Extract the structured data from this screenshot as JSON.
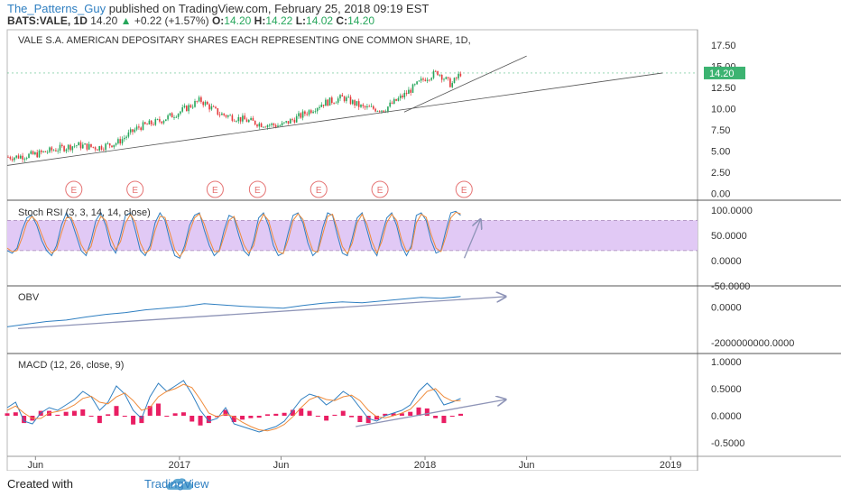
{
  "header": {
    "user": "The_Patterns_Guy",
    "published": "published on TradingView.com, February 25, 2018 09:19 EST",
    "symbol": "BATS:VALE, 1D",
    "last": "14.20",
    "change": "+0.22 (+1.57%)",
    "o_label": "O:",
    "o_val": "14.20",
    "h_label": "H:",
    "h_val": "14.22",
    "l_label": "L:",
    "l_val": "14.02",
    "c_label": "C:",
    "c_val": "14.20"
  },
  "footer": {
    "created_with": "Created with",
    "brand": "TradingView"
  },
  "colors": {
    "up": "#26a65b",
    "down": "#e5393b",
    "stoch_k": "#2f7fc1",
    "stoch_d": "#ef8b3b",
    "band": "#e1c9f5",
    "macd_line": "#2f7fc1",
    "signal_line": "#ef8b3b",
    "histogram": "#e91e63",
    "trendline": "#8e94b7",
    "earnings": "#e57373",
    "price_tag": "#3cb371"
  },
  "chart_data": [
    {
      "type": "candlestick",
      "title": "VALE S.A. AMERICAN DEPOSITARY SHARES EACH REPRESENTING ONE COMMON SHARE, 1D,",
      "x_ticks": [
        "Jun",
        "2017",
        "Jun",
        "2018",
        "Jun",
        "2019"
      ],
      "y_ticks": [
        "17.50",
        "15.00",
        "12.50",
        "10.00",
        "7.50",
        "5.00",
        "2.50",
        "0.00"
      ],
      "ylim": [
        -0.8,
        19.3
      ],
      "last_price_tag": "14.20",
      "earnings_markers": [
        "E",
        "E",
        "E",
        "E",
        "E",
        "E",
        "E"
      ],
      "price_path": [
        [
          "2016-05-01",
          4.3
        ],
        [
          "2016-06-01",
          4.6
        ],
        [
          "2016-07-01",
          5.2
        ],
        [
          "2016-08-01",
          5.7
        ],
        [
          "2016-09-01",
          5.4
        ],
        [
          "2016-10-01",
          6.0
        ],
        [
          "2016-11-01",
          7.8
        ],
        [
          "2016-12-01",
          8.5
        ],
        [
          "2017-01-01",
          9.6
        ],
        [
          "2017-02-01",
          11.0
        ],
        [
          "2017-03-01",
          9.4
        ],
        [
          "2017-04-01",
          8.8
        ],
        [
          "2017-05-01",
          8.2
        ],
        [
          "2017-06-01",
          8.0
        ],
        [
          "2017-07-01",
          9.2
        ],
        [
          "2017-08-01",
          10.6
        ],
        [
          "2017-09-01",
          11.3
        ],
        [
          "2017-10-01",
          10.1
        ],
        [
          "2017-11-01",
          9.9
        ],
        [
          "2017-12-01",
          11.6
        ],
        [
          "2018-01-01",
          13.6
        ],
        [
          "2018-01-20",
          14.3
        ],
        [
          "2018-02-09",
          12.8
        ],
        [
          "2018-02-23",
          14.2
        ]
      ],
      "trendlines": [
        {
          "from": [
            "2016-04-20",
            3.3
          ],
          "to": [
            "2018-12-20",
            14.2
          ]
        },
        {
          "from": [
            "2017-12-01",
            9.6
          ],
          "to": [
            "2018-06-01",
            16.2
          ]
        }
      ]
    },
    {
      "type": "line",
      "title": "Stoch RSI (3, 3, 14, 14, close)",
      "y_ticks": [
        "100.0000",
        "50.0000",
        "0.0000",
        "-50.0000"
      ],
      "band": [
        20,
        80
      ],
      "ylim": [
        -50,
        120
      ],
      "series": [
        {
          "values": [
            20,
            15,
            25,
            60,
            85,
            90,
            70,
            40,
            20,
            10,
            30,
            70,
            95,
            80,
            50,
            20,
            10,
            40,
            80,
            95,
            70,
            30,
            15,
            50,
            90,
            95,
            60,
            20,
            10,
            30,
            75,
            95,
            80,
            40,
            10,
            5,
            30,
            70,
            90,
            95,
            60,
            30,
            10,
            20,
            60,
            90,
            85,
            50,
            20,
            10,
            40,
            85,
            95,
            70,
            30,
            10,
            15,
            55,
            90,
            95,
            75,
            35,
            10,
            20,
            65,
            95,
            90,
            50,
            15,
            10,
            45,
            85,
            95,
            60,
            25,
            10,
            50,
            85,
            95,
            70,
            30,
            10,
            30,
            90,
            95,
            80,
            40,
            15,
            20,
            60,
            95,
            98,
            90
          ]
        },
        {
          "values": [
            25,
            18,
            20,
            45,
            75,
            88,
            78,
            52,
            28,
            15,
            22,
            55,
            85,
            86,
            62,
            32,
            15,
            28,
            65,
            88,
            80,
            45,
            22,
            38,
            75,
            92,
            75,
            35,
            15,
            22,
            60,
            88,
            86,
            55,
            22,
            8,
            22,
            58,
            85,
            93,
            72,
            42,
            18,
            18,
            48,
            80,
            88,
            62,
            32,
            15,
            30,
            72,
            92,
            80,
            45,
            18,
            14,
            42,
            80,
            93,
            82,
            48,
            20,
            17,
            52,
            88,
            92,
            62,
            28,
            14,
            35,
            75,
            92,
            72,
            38,
            15,
            38,
            75,
            92,
            80,
            42,
            18,
            24,
            75,
            92,
            86,
            52,
            25,
            18,
            48,
            85,
            96,
            93
          ]
        }
      ],
      "annotation_arrow": {
        "from_value": 5,
        "to_value": 82
      }
    },
    {
      "type": "line",
      "title": "OBV",
      "y_ticks": [
        "0.0000",
        "-2000000000.0000"
      ],
      "ylim": [
        -2600000000,
        1200000000
      ],
      "series": [
        {
          "values": [
            -1100000000.0,
            -950000000.0,
            -800000000.0,
            -720000000.0,
            -550000000.0,
            -400000000.0,
            -300000000.0,
            -150000000.0,
            -50000000.0,
            50000000.0,
            200000000.0,
            120000000.0,
            50000000.0,
            0.0,
            -50000000.0,
            100000000.0,
            220000000.0,
            300000000.0,
            250000000.0,
            350000000.0,
            450000000.0,
            550000000.0,
            500000000.0,
            600000000.0
          ]
        }
      ],
      "annotation_arrow": {
        "from_value": -1200000000.0,
        "to_value": 600000000.0
      }
    },
    {
      "type": "line",
      "title": "MACD (12, 26, close, 9)",
      "y_ticks": [
        "1.0000",
        "0.5000",
        "0.0000",
        "-0.5000"
      ],
      "ylim": [
        -0.75,
        1.15
      ],
      "series": [
        {
          "values": [
            0.15,
            0.25,
            -0.1,
            -0.15,
            0.05,
            0.15,
            0.1,
            0.2,
            0.3,
            0.45,
            0.35,
            0.1,
            0.25,
            0.55,
            0.4,
            0.1,
            -0.05,
            0.35,
            0.6,
            0.45,
            0.55,
            0.65,
            0.4,
            0.1,
            -0.1,
            -0.05,
            0.15,
            -0.15,
            -0.2,
            -0.25,
            -0.3,
            -0.25,
            -0.2,
            -0.1,
            0.1,
            0.3,
            0.4,
            0.35,
            0.2,
            0.3,
            0.45,
            0.35,
            0.15,
            -0.05,
            -0.1,
            0.0,
            0.05,
            0.1,
            0.2,
            0.45,
            0.6,
            0.45,
            0.2,
            0.25,
            0.32
          ]
        },
        {
          "values": [
            0.1,
            0.18,
            0.05,
            -0.05,
            -0.05,
            0.05,
            0.08,
            0.12,
            0.2,
            0.32,
            0.36,
            0.25,
            0.22,
            0.35,
            0.42,
            0.28,
            0.1,
            0.15,
            0.35,
            0.45,
            0.5,
            0.58,
            0.52,
            0.3,
            0.05,
            -0.02,
            0.03,
            -0.02,
            -0.12,
            -0.2,
            -0.26,
            -0.28,
            -0.24,
            -0.16,
            -0.02,
            0.15,
            0.3,
            0.36,
            0.3,
            0.28,
            0.35,
            0.38,
            0.28,
            0.1,
            -0.02,
            -0.04,
            0.0,
            0.05,
            0.12,
            0.28,
            0.45,
            0.5,
            0.35,
            0.27,
            0.28
          ]
        }
      ],
      "annotation_arrow": {
        "from_value": -0.2,
        "to_value": 0.3
      }
    }
  ]
}
